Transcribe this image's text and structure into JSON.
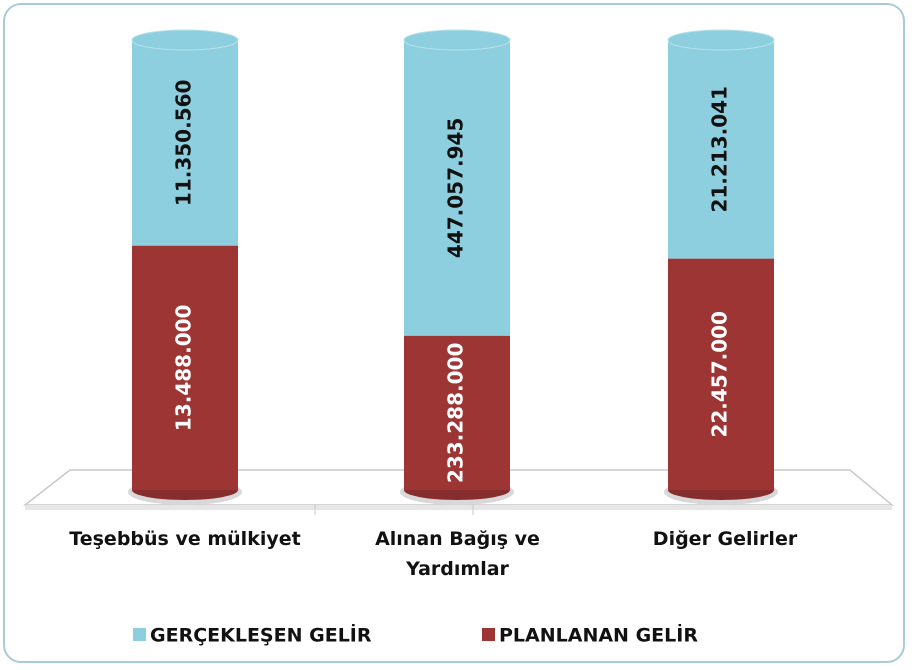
{
  "chart_data": {
    "type": "bar",
    "stacked": "percent",
    "categories": [
      "Teşebbüs ve mülkiyet",
      "Alınan Bağış ve Yardımlar",
      "Diğer Gelirler"
    ],
    "series": [
      {
        "name": "PLANLANAN GELİR",
        "color": "#9e3535",
        "values": [
          13488000,
          233288000,
          22457000
        ],
        "value_labels": [
          "13.488.000",
          "233.288.000",
          "22.457.000"
        ]
      },
      {
        "name": "GERÇEKLEŞEN GELİR",
        "color": "#8ecfdf",
        "values": [
          11350560,
          447057945,
          21213041
        ],
        "value_labels": [
          "11.350.560",
          "447.057.945",
          "21.213.041"
        ]
      }
    ]
  }
}
